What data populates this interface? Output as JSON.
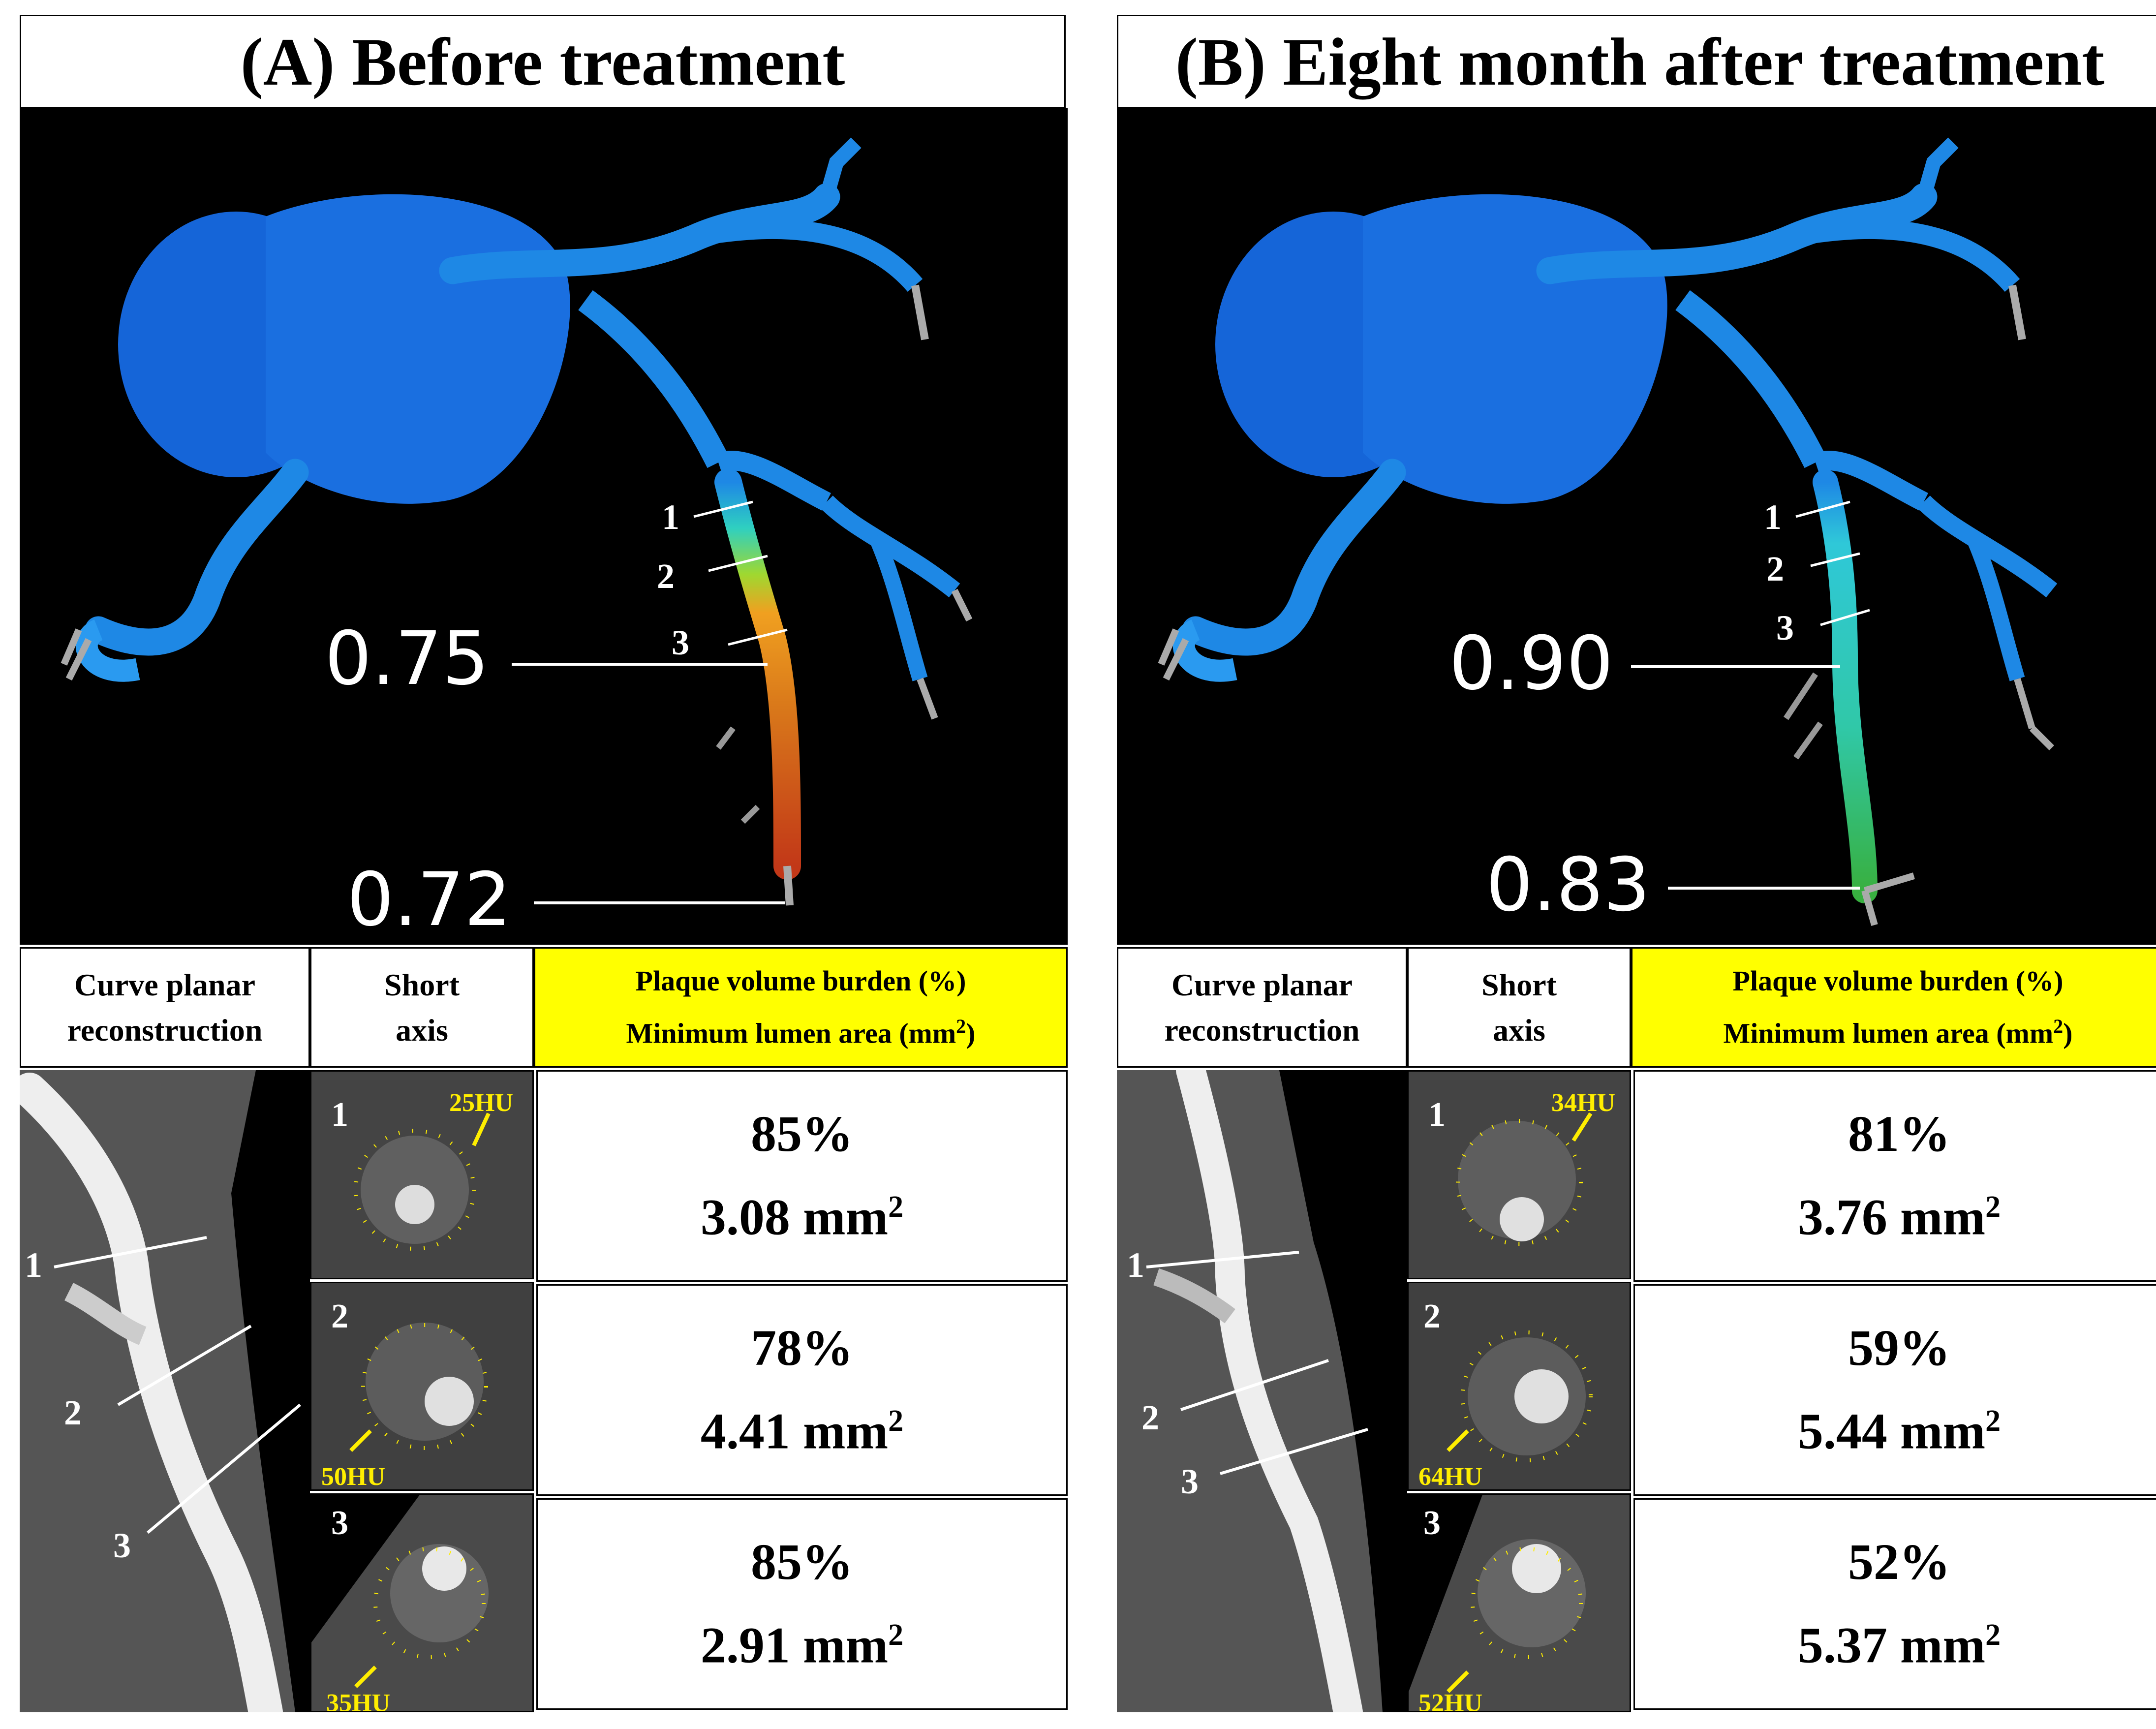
{
  "panels": [
    {
      "title": "(A) Before treatment",
      "model": {
        "segment_markers": [
          "1",
          "2",
          "3"
        ],
        "ffr_values": [
          "0.75",
          "0.72"
        ]
      },
      "headers": {
        "cpr": [
          "Curve planar",
          "reconstruction"
        ],
        "short_axis": [
          "Short",
          "axis"
        ],
        "metrics_line1": "Plaque volume burden (%)",
        "metrics_line2": "Minimum lumen area (mm",
        "sup": "2",
        "close": ")"
      },
      "cpr_labels": [
        "1",
        "2",
        "3"
      ],
      "rows": [
        {
          "index": "1",
          "hu": "25HU",
          "burden": "85%",
          "area": "3.08 mm",
          "sup": "2"
        },
        {
          "index": "2",
          "hu": "50HU",
          "burden": "78%",
          "area": "4.41 mm",
          "sup": "2"
        },
        {
          "index": "3",
          "hu": "35HU",
          "burden": "85%",
          "area": "2.91 mm",
          "sup": "2"
        }
      ]
    },
    {
      "title": "(B) Eight month after treatment",
      "model": {
        "segment_markers": [
          "1",
          "2",
          "3"
        ],
        "ffr_values": [
          "0.90",
          "0.83"
        ]
      },
      "headers": {
        "cpr": [
          "Curve planar",
          "reconstruction"
        ],
        "short_axis": [
          "Short",
          "axis"
        ],
        "metrics_line1": "Plaque volume burden (%)",
        "metrics_line2": "Minimum lumen area (mm",
        "sup": "2",
        "close": ")"
      },
      "cpr_labels": [
        "1",
        "2",
        "3"
      ],
      "rows": [
        {
          "index": "1",
          "hu": "34HU",
          "burden": "81%",
          "area": "3.76 mm",
          "sup": "2"
        },
        {
          "index": "2",
          "hu": "64HU",
          "burden": "59%",
          "area": "5.44 mm",
          "sup": "2"
        },
        {
          "index": "3",
          "hu": "52HU",
          "burden": "52%",
          "area": "5.37 mm",
          "sup": "2"
        }
      ]
    }
  ],
  "colors": {
    "vessel_blue": "#1e88e5",
    "aorta_blue": "#1565d8",
    "annotation_yellow": "#ffee00",
    "header_highlight": "#ffff00"
  }
}
